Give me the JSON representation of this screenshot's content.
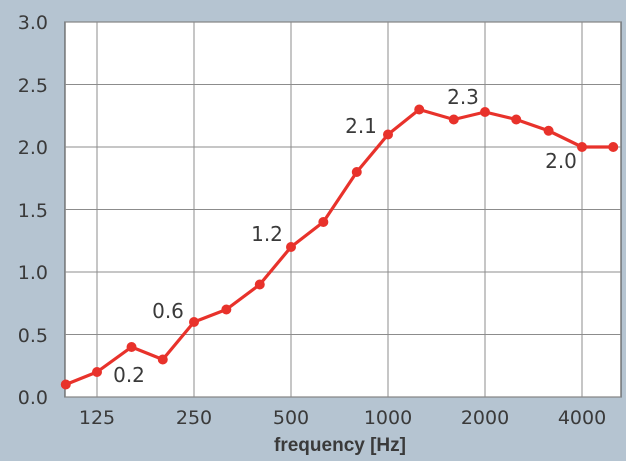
{
  "chart_data": {
    "type": "line",
    "title": "",
    "xlabel": "frequency [Hz]",
    "ylabel": "",
    "ylim": [
      0,
      3.0
    ],
    "yticks": [
      "0.0",
      "0.5",
      "1.0",
      "1.5",
      "2.0",
      "2.5",
      "3.0"
    ],
    "xticks": [
      "125",
      "250",
      "500",
      "1000",
      "2000",
      "4000"
    ],
    "x_scale": "log (third-octave bands)",
    "grid": true,
    "x": [
      100,
      125,
      160,
      200,
      250,
      315,
      400,
      500,
      630,
      800,
      1000,
      1250,
      1600,
      2000,
      2500,
      3150,
      4000,
      5000
    ],
    "series": [
      {
        "values": [
          0.1,
          0.2,
          0.4,
          0.3,
          0.6,
          0.7,
          0.9,
          1.2,
          1.4,
          1.8,
          2.1,
          2.3,
          2.22,
          2.28,
          2.22,
          2.13,
          2.0,
          2.0
        ]
      }
    ],
    "annotations": [
      "0.2",
      "0.6",
      "1.2",
      "2.1",
      "2.3",
      "2.0"
    ],
    "colors": {
      "background": "#b5c4d1",
      "plot_area": "#ffffff",
      "grid": "#8c8c8c",
      "line": "#e8322b"
    }
  }
}
